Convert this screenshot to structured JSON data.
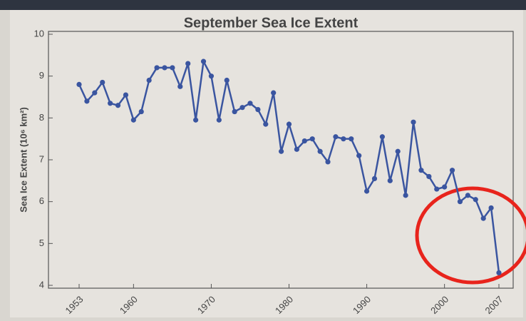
{
  "chart_data": {
    "type": "line",
    "title": "September Sea Ice Extent",
    "ylabel": "Sea Ice Extent (10⁶ km²)",
    "x": [
      1953,
      1954,
      1955,
      1956,
      1957,
      1958,
      1959,
      1960,
      1961,
      1962,
      1963,
      1964,
      1965,
      1966,
      1967,
      1968,
      1969,
      1970,
      1971,
      1972,
      1973,
      1974,
      1975,
      1976,
      1977,
      1978,
      1979,
      1980,
      1981,
      1982,
      1983,
      1984,
      1985,
      1986,
      1987,
      1988,
      1989,
      1990,
      1991,
      1992,
      1993,
      1994,
      1995,
      1996,
      1997,
      1998,
      1999,
      2000,
      2001,
      2002,
      2003,
      2004,
      2005,
      2006,
      2007
    ],
    "values": [
      8.8,
      8.4,
      8.6,
      8.85,
      8.35,
      8.3,
      8.55,
      7.95,
      8.15,
      8.9,
      9.2,
      9.2,
      9.2,
      8.75,
      9.3,
      7.95,
      9.35,
      9.0,
      7.95,
      8.9,
      8.15,
      8.25,
      8.35,
      8.2,
      7.85,
      8.6,
      7.2,
      7.85,
      7.25,
      7.45,
      7.5,
      7.2,
      6.95,
      7.55,
      7.5,
      7.5,
      7.1,
      6.25,
      6.55,
      7.55,
      6.5,
      7.2,
      6.15,
      7.9,
      6.75,
      6.6,
      6.3,
      6.35,
      6.75,
      6.0,
      6.15,
      6.05,
      5.6,
      5.85,
      4.3
    ],
    "color": "#3a55a0",
    "xlim": [
      1953,
      2007
    ],
    "xticks": [
      1953,
      1960,
      1970,
      1980,
      1990,
      2000,
      2007
    ],
    "ylim": [
      4,
      10
    ],
    "yticks": [
      4,
      5,
      6,
      7,
      8,
      9,
      10
    ]
  }
}
